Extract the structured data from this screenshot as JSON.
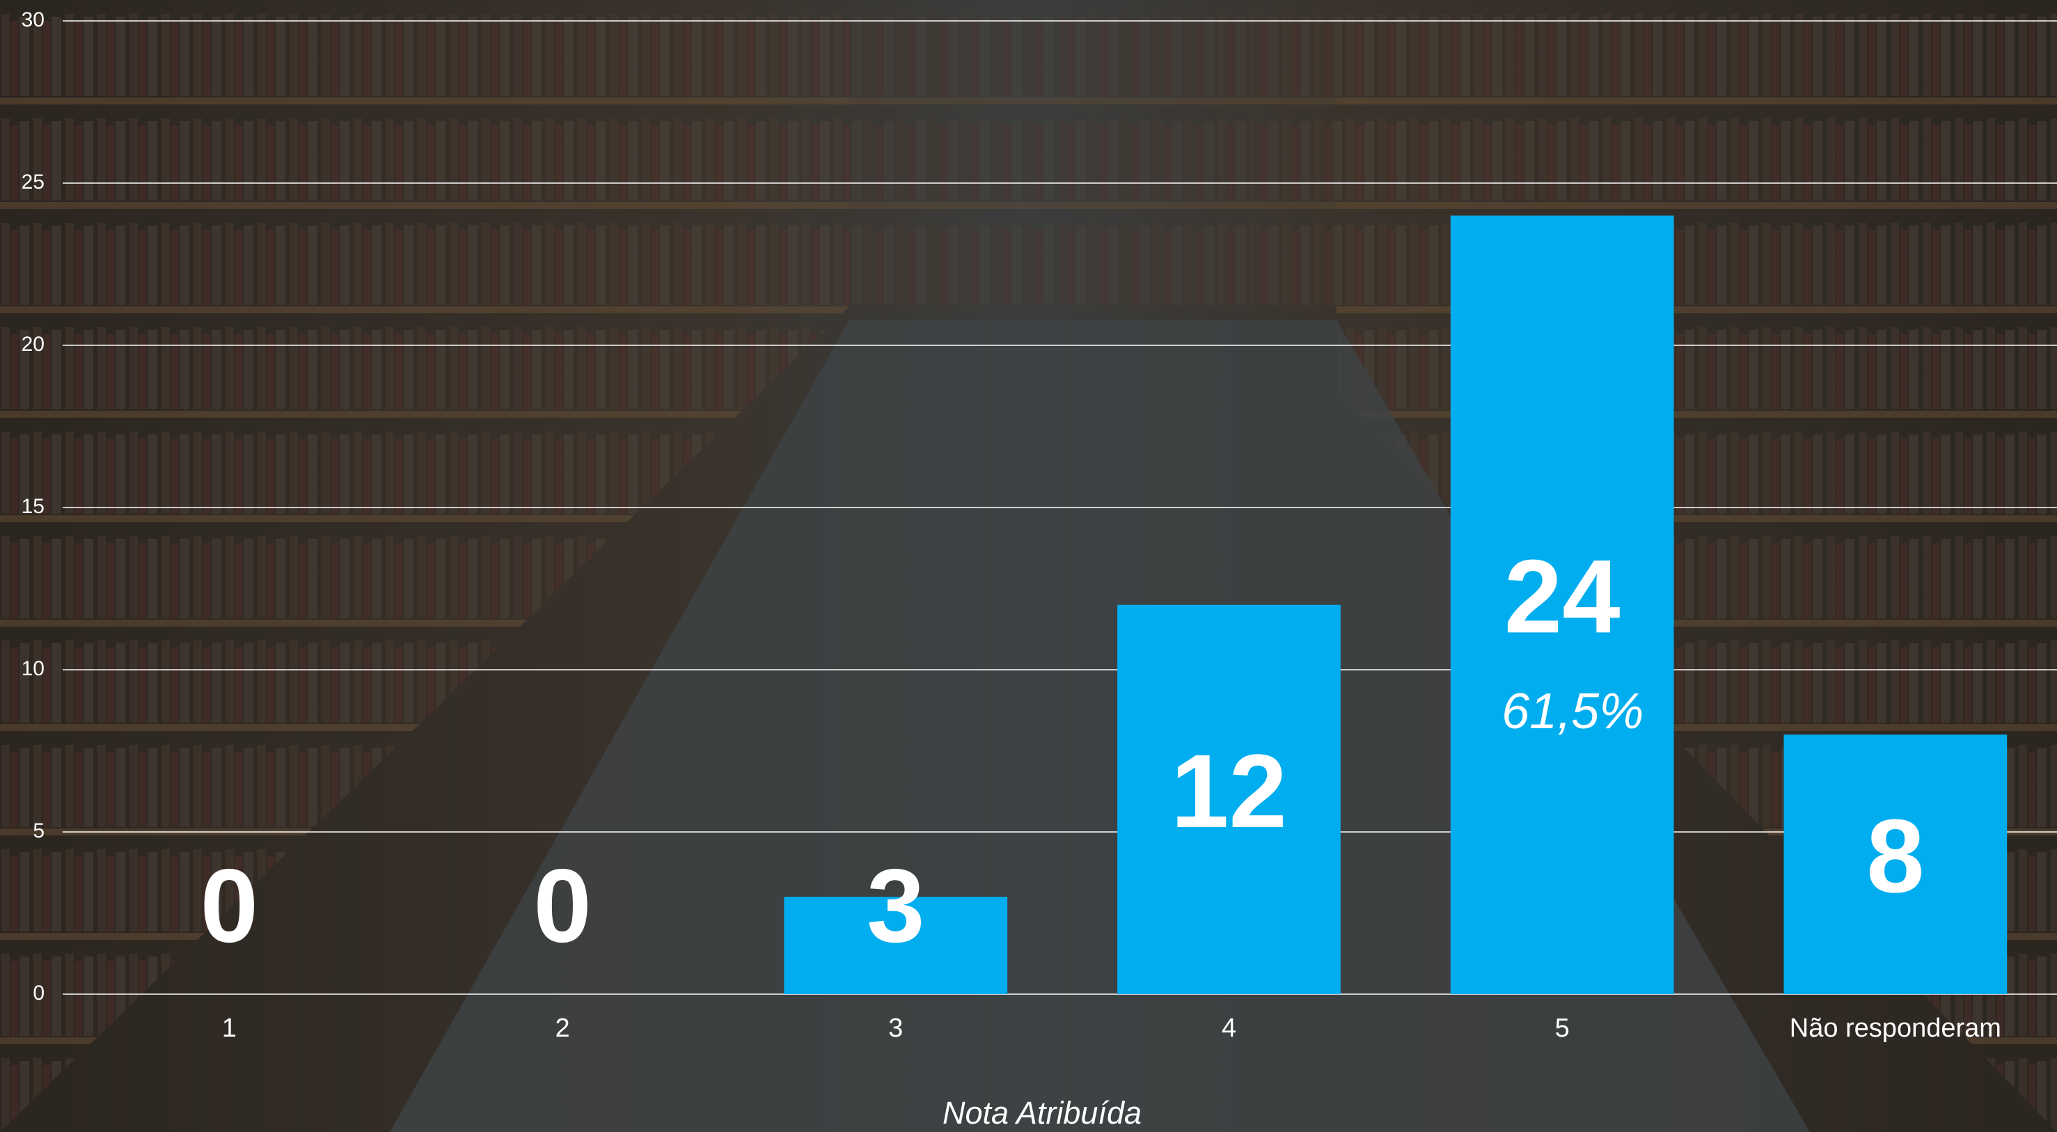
{
  "chart_data": {
    "type": "bar",
    "categories": [
      "1",
      "2",
      "3",
      "4",
      "5",
      "Não responderam"
    ],
    "values": [
      0,
      0,
      3,
      12,
      24,
      8
    ],
    "color": "#00aeef",
    "ylim": [
      0,
      30
    ],
    "yticks": [
      0,
      5,
      10,
      15,
      20,
      25,
      30
    ],
    "grid": true,
    "x_label": "Nota Atribuída",
    "annotations": [
      {
        "text": "61,5%",
        "category_index": 4
      }
    ]
  }
}
